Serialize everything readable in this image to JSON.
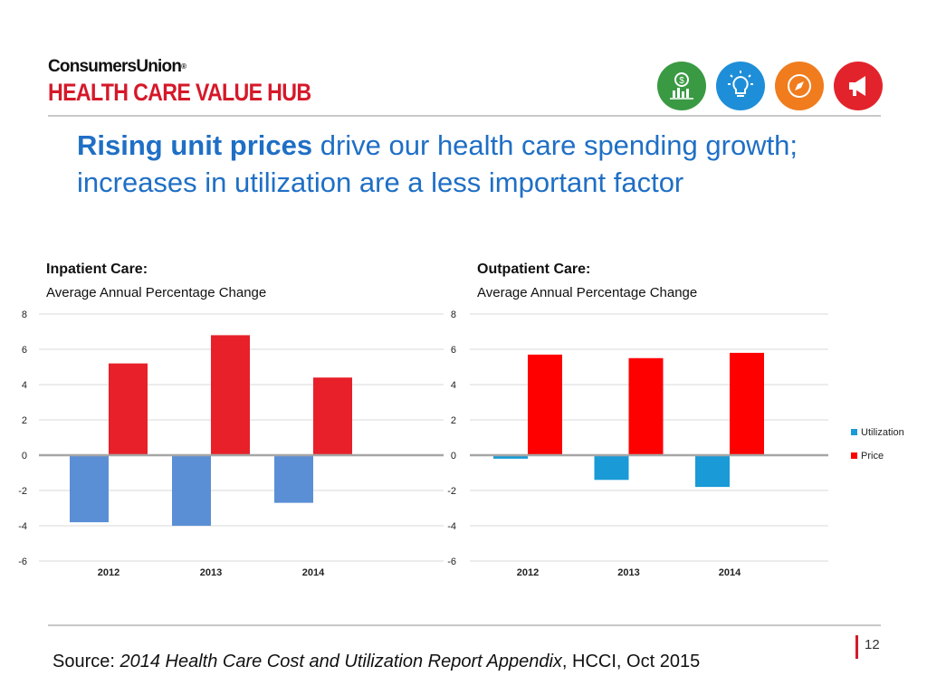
{
  "brand": {
    "line1": "ConsumersUnion",
    "reg": "®",
    "line2": "HEALTH CARE VALUE HUB",
    "color_dark": "#111111",
    "color_red": "#d5192a"
  },
  "header_icons": [
    {
      "name": "money-chart-icon",
      "color": "#3a9a43"
    },
    {
      "name": "lightbulb-icon",
      "color": "#1e8ed8"
    },
    {
      "name": "compass-icon",
      "color": "#f07c1e"
    },
    {
      "name": "megaphone-icon",
      "color": "#e3232c"
    }
  ],
  "title": {
    "bold": "Rising unit prices",
    "rest": " drive our health care spending growth; increases in utilization are a less important factor"
  },
  "charts": {
    "inpatient": {
      "heading": "Inpatient Care:",
      "sub": "Average Annual Percentage Change"
    },
    "outpatient": {
      "heading": "Outpatient Care:",
      "sub": "Average Annual Percentage Change"
    }
  },
  "chart_data": [
    {
      "type": "bar",
      "title": "Inpatient Care: Average Annual Percentage Change",
      "categories": [
        "2012",
        "2013",
        "2014"
      ],
      "series": [
        {
          "name": "Utilization",
          "values": [
            -3.8,
            -4.0,
            -2.7
          ],
          "color": "#5a8fd6"
        },
        {
          "name": "Price",
          "values": [
            5.2,
            6.8,
            4.4
          ],
          "color": "#e8202a"
        }
      ],
      "ylim": [
        -6,
        8
      ],
      "yticks": [
        8,
        6,
        4,
        2,
        0,
        -2,
        -4,
        -6
      ],
      "grid": true
    },
    {
      "type": "bar",
      "title": "Outpatient Care: Average Annual Percentage Change",
      "categories": [
        "2012",
        "2013",
        "2014"
      ],
      "series": [
        {
          "name": "Utilization",
          "values": [
            -0.2,
            -1.4,
            -1.8
          ],
          "color": "#1a9ad6"
        },
        {
          "name": "Price",
          "values": [
            5.7,
            5.5,
            5.8
          ],
          "color": "#ff0000"
        }
      ],
      "ylim": [
        -6,
        8
      ],
      "yticks": [
        8,
        6,
        4,
        2,
        0,
        -2,
        -4,
        -6
      ],
      "grid": true,
      "legend": "right"
    }
  ],
  "legend": [
    {
      "label": "Utilization",
      "color": "#1a9ad6"
    },
    {
      "label": "Price",
      "color": "#ff0000"
    }
  ],
  "footer": {
    "page_number": "12",
    "source_prefix": "Source: ",
    "source_title": "2014 Health Care Cost and Utilization Report Appendix",
    "source_suffix": ", HCCI, Oct 2015"
  }
}
